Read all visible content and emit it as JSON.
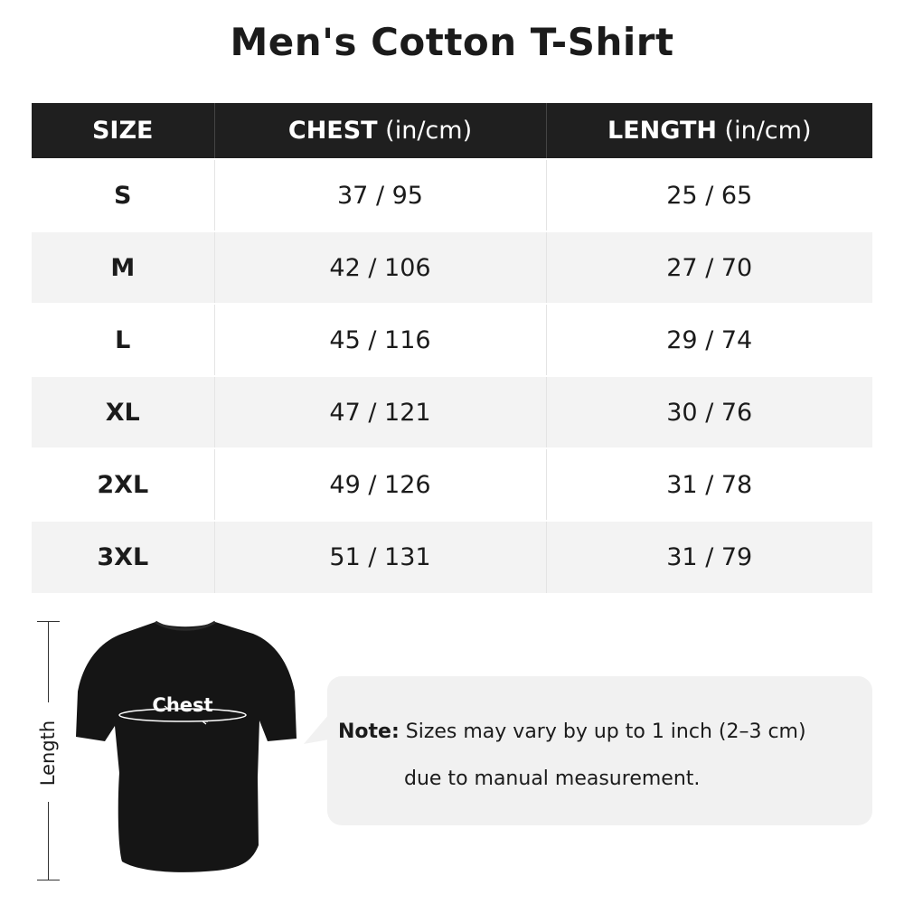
{
  "title": "Men's Cotton T-Shirt",
  "table": {
    "headers": [
      {
        "label": "SIZE",
        "unit": ""
      },
      {
        "label": "CHEST",
        "unit": " (in/cm)"
      },
      {
        "label": "LENGTH",
        "unit": " (in/cm)"
      }
    ],
    "rows": [
      {
        "size": "S",
        "chest": "37 / 95",
        "length": "25 / 65"
      },
      {
        "size": "M",
        "chest": "42 / 106",
        "length": "27 / 70"
      },
      {
        "size": "L",
        "chest": "45 / 116",
        "length": "29 / 74"
      },
      {
        "size": "XL",
        "chest": "47 / 121",
        "length": "30 / 76"
      },
      {
        "size": "2XL",
        "chest": "49 / 126",
        "length": "31 / 78"
      },
      {
        "size": "3XL",
        "chest": "51 / 131",
        "length": "31 / 79"
      }
    ]
  },
  "diagram": {
    "length_label": "Length",
    "chest_label": "Chest"
  },
  "note": {
    "prefix": "Note:",
    "line1": " Sizes may vary by up to 1 inch (2–3 cm)",
    "line2": "due to manual measurement."
  },
  "colors": {
    "header_bg": "#1f1f1f",
    "alt_row": "#f3f3f3",
    "bubble": "#f1f1f1"
  }
}
